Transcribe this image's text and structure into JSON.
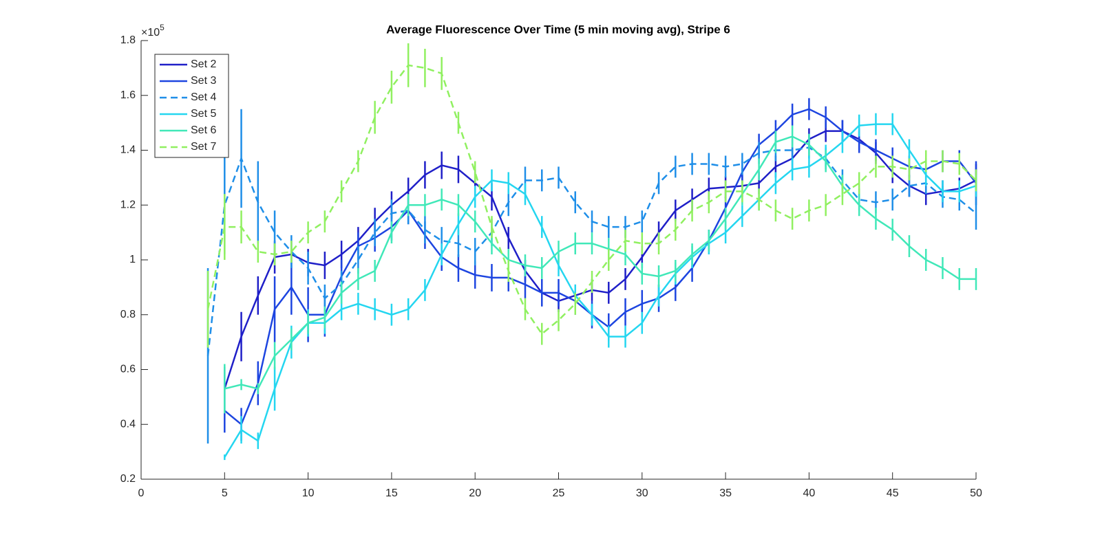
{
  "chart_data": {
    "type": "line",
    "title": "Average Fluorescence Over Time (5 min moving avg), Stripe 6",
    "y_multiplier": {
      "base": "×10",
      "exponent": "5"
    },
    "x": [
      4,
      5,
      6,
      7,
      8,
      9,
      10,
      11,
      12,
      13,
      14,
      15,
      16,
      17,
      18,
      19,
      20,
      21,
      22,
      23,
      24,
      25,
      26,
      27,
      28,
      29,
      30,
      31,
      32,
      33,
      34,
      35,
      36,
      37,
      38,
      39,
      40,
      41,
      42,
      43,
      44,
      45,
      46,
      47,
      48,
      49,
      50
    ],
    "xlim": [
      0,
      50
    ],
    "xticks": [
      0,
      5,
      10,
      15,
      20,
      25,
      30,
      35,
      40,
      45,
      50
    ],
    "ylim": [
      0.2,
      1.8
    ],
    "yticks": [
      0.2,
      0.4,
      0.6,
      0.8,
      1,
      1.2,
      1.4,
      1.6,
      1.8
    ],
    "grid": false,
    "legend_position": "upper-left",
    "series": [
      {
        "name": "Set 2",
        "color": "#1f1fc8",
        "line_style": "solid",
        "values": [
          null,
          0.53,
          0.72,
          0.87,
          1.01,
          1.02,
          0.99,
          0.98,
          1.02,
          1.07,
          1.14,
          1.2,
          1.25,
          1.31,
          1.345,
          1.33,
          1.28,
          1.23,
          1.08,
          0.96,
          0.88,
          0.85,
          0.87,
          0.89,
          0.88,
          0.93,
          1.01,
          1.1,
          1.18,
          1.22,
          1.26,
          1.265,
          1.27,
          1.28,
          1.34,
          1.37,
          1.44,
          1.47,
          1.47,
          1.44,
          1.39,
          1.32,
          1.27,
          1.24,
          1.25,
          1.26,
          1.29
        ],
        "errors": [
          null,
          0.08,
          0.09,
          0.07,
          0.06,
          0.05,
          0.05,
          0.05,
          0.05,
          0.05,
          0.05,
          0.05,
          0.05,
          0.05,
          0.05,
          0.05,
          0.05,
          0.05,
          0.04,
          0.04,
          0.04,
          0.04,
          0.04,
          0.04,
          0.04,
          0.04,
          0.04,
          0.04,
          0.04,
          0.04,
          0.04,
          0.04,
          0.04,
          0.04,
          0.04,
          0.04,
          0.04,
          0.04,
          0.04,
          0.04,
          0.04,
          0.04,
          0.04,
          0.04,
          0.04,
          0.04,
          0.06
        ]
      },
      {
        "name": "Set 3",
        "color": "#1d45e0",
        "line_style": "solid",
        "values": [
          null,
          0.45,
          0.4,
          0.55,
          0.82,
          0.9,
          0.8,
          0.8,
          0.94,
          1.05,
          1.08,
          1.12,
          1.18,
          1.09,
          1.01,
          0.97,
          0.945,
          0.935,
          0.935,
          0.91,
          0.88,
          0.88,
          0.85,
          0.8,
          0.755,
          0.81,
          0.84,
          0.86,
          0.9,
          0.97,
          1.07,
          1.19,
          1.32,
          1.42,
          1.47,
          1.53,
          1.55,
          1.52,
          1.47,
          1.43,
          1.4,
          1.37,
          1.34,
          1.33,
          1.36,
          1.36,
          1.28
        ],
        "errors": [
          null,
          0.08,
          0.06,
          0.08,
          0.12,
          0.1,
          0.1,
          0.08,
          0.06,
          0.05,
          0.05,
          0.05,
          0.05,
          0.05,
          0.05,
          0.05,
          0.05,
          0.05,
          0.05,
          0.05,
          0.05,
          0.05,
          0.05,
          0.05,
          0.05,
          0.05,
          0.05,
          0.05,
          0.05,
          0.05,
          0.04,
          0.04,
          0.04,
          0.04,
          0.04,
          0.04,
          0.04,
          0.04,
          0.04,
          0.04,
          0.04,
          0.04,
          0.04,
          0.04,
          0.04,
          0.04,
          0.08
        ]
      },
      {
        "name": "Set 4",
        "color": "#1e8ee8",
        "line_style": "dashed",
        "values": [
          0.65,
          1.2,
          1.37,
          1.21,
          1.1,
          1.03,
          0.97,
          0.86,
          0.91,
          1.0,
          1.1,
          1.17,
          1.18,
          1.11,
          1.07,
          1.06,
          1.03,
          1.1,
          1.21,
          1.29,
          1.29,
          1.3,
          1.21,
          1.14,
          1.12,
          1.12,
          1.14,
          1.28,
          1.34,
          1.35,
          1.35,
          1.34,
          1.35,
          1.39,
          1.4,
          1.4,
          1.41,
          1.37,
          1.29,
          1.22,
          1.21,
          1.22,
          1.27,
          1.28,
          1.23,
          1.22,
          1.17
        ],
        "errors": [
          0.32,
          0.18,
          0.18,
          0.15,
          0.08,
          0.06,
          0.06,
          0.05,
          0.05,
          0.05,
          0.05,
          0.05,
          0.05,
          0.05,
          0.05,
          0.05,
          0.05,
          0.05,
          0.05,
          0.05,
          0.04,
          0.04,
          0.04,
          0.04,
          0.04,
          0.04,
          0.04,
          0.04,
          0.04,
          0.04,
          0.04,
          0.04,
          0.04,
          0.04,
          0.04,
          0.04,
          0.04,
          0.04,
          0.04,
          0.04,
          0.04,
          0.04,
          0.04,
          0.04,
          0.04,
          0.04,
          0.06
        ]
      },
      {
        "name": "Set 5",
        "color": "#24d6f0",
        "line_style": "solid",
        "values": [
          null,
          0.28,
          0.38,
          0.34,
          0.53,
          0.7,
          0.77,
          0.77,
          0.82,
          0.84,
          0.82,
          0.8,
          0.82,
          0.89,
          1.02,
          1.13,
          1.23,
          1.29,
          1.28,
          1.24,
          1.12,
          0.98,
          0.87,
          0.8,
          0.72,
          0.72,
          0.77,
          0.87,
          0.95,
          1.01,
          1.06,
          1.1,
          1.16,
          1.22,
          1.28,
          1.33,
          1.34,
          1.38,
          1.43,
          1.49,
          1.495,
          1.495,
          1.4,
          1.31,
          1.25,
          1.25,
          1.27
        ],
        "errors": [
          null,
          0.01,
          0.05,
          0.03,
          0.08,
          0.06,
          0.05,
          0.04,
          0.04,
          0.04,
          0.04,
          0.04,
          0.04,
          0.04,
          0.04,
          0.04,
          0.04,
          0.04,
          0.04,
          0.04,
          0.04,
          0.04,
          0.04,
          0.04,
          0.04,
          0.04,
          0.04,
          0.04,
          0.04,
          0.04,
          0.04,
          0.04,
          0.04,
          0.04,
          0.04,
          0.04,
          0.04,
          0.04,
          0.04,
          0.04,
          0.04,
          0.04,
          0.04,
          0.04,
          0.04,
          0.04,
          0.04
        ]
      },
      {
        "name": "Set 6",
        "color": "#40e8b8",
        "line_style": "solid",
        "values": [
          null,
          0.53,
          0.545,
          0.53,
          0.65,
          0.71,
          0.77,
          0.79,
          0.88,
          0.93,
          0.96,
          1.1,
          1.2,
          1.2,
          1.22,
          1.2,
          1.14,
          1.06,
          1.0,
          0.98,
          0.97,
          1.03,
          1.06,
          1.06,
          1.04,
          1.02,
          0.95,
          0.94,
          0.96,
          1.02,
          1.07,
          1.15,
          1.24,
          1.33,
          1.43,
          1.45,
          1.42,
          1.36,
          1.27,
          1.2,
          1.15,
          1.11,
          1.05,
          1.0,
          0.97,
          0.93,
          0.93
        ],
        "errors": [
          null,
          0.09,
          0.02,
          0.02,
          0.05,
          0.04,
          0.04,
          0.04,
          0.04,
          0.04,
          0.04,
          0.04,
          0.04,
          0.04,
          0.04,
          0.04,
          0.04,
          0.04,
          0.04,
          0.04,
          0.04,
          0.04,
          0.04,
          0.04,
          0.04,
          0.04,
          0.04,
          0.04,
          0.04,
          0.04,
          0.04,
          0.04,
          0.04,
          0.04,
          0.04,
          0.04,
          0.04,
          0.04,
          0.04,
          0.04,
          0.04,
          0.04,
          0.04,
          0.04,
          0.04,
          0.04,
          0.04
        ]
      },
      {
        "name": "Set 7",
        "color": "#90f060",
        "line_style": "dashed",
        "values": [
          0.82,
          1.12,
          1.12,
          1.03,
          1.02,
          1.03,
          1.1,
          1.14,
          1.25,
          1.36,
          1.52,
          1.63,
          1.71,
          1.7,
          1.68,
          1.5,
          1.32,
          1.12,
          0.96,
          0.82,
          0.73,
          0.78,
          0.84,
          0.92,
          1.0,
          1.07,
          1.06,
          1.06,
          1.11,
          1.18,
          1.21,
          1.25,
          1.25,
          1.22,
          1.18,
          1.15,
          1.18,
          1.2,
          1.24,
          1.28,
          1.34,
          1.34,
          1.33,
          1.36,
          1.36,
          1.35,
          1.29
        ],
        "errors": [
          0.14,
          0.12,
          0.06,
          0.04,
          0.04,
          0.04,
          0.04,
          0.04,
          0.04,
          0.04,
          0.06,
          0.06,
          0.08,
          0.07,
          0.06,
          0.04,
          0.04,
          0.04,
          0.04,
          0.04,
          0.04,
          0.04,
          0.04,
          0.04,
          0.04,
          0.04,
          0.04,
          0.04,
          0.04,
          0.04,
          0.04,
          0.04,
          0.04,
          0.04,
          0.04,
          0.04,
          0.04,
          0.04,
          0.04,
          0.04,
          0.04,
          0.04,
          0.04,
          0.04,
          0.04,
          0.04,
          0.04
        ]
      }
    ]
  }
}
